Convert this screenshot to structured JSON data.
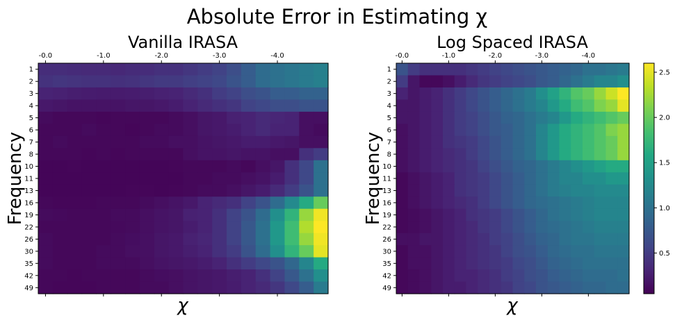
{
  "figure": {
    "title": "Absolute Error in Estimating χ"
  },
  "colormap": "viridis",
  "chart_data": [
    {
      "type": "heatmap",
      "title": "Vanilla IRASA",
      "xlabel": "χ",
      "ylabel": "Frequency",
      "x_tick_labels": [
        "-0.0",
        "-1.0",
        "-2.0",
        "-3.0",
        "-4.0"
      ],
      "y_tick_labels": [
        "1",
        "2",
        "3",
        "4",
        "5",
        "6",
        "7",
        "8",
        "10",
        "11",
        "13",
        "16",
        "19",
        "22",
        "26",
        "30",
        "35",
        "42",
        "49"
      ],
      "grid": false,
      "color_range": [
        0.05,
        2.6
      ],
      "values": [
        [
          0.38,
          0.38,
          0.36,
          0.35,
          0.35,
          0.34,
          0.36,
          0.37,
          0.4,
          0.4,
          0.45,
          0.5,
          0.55,
          0.65,
          0.8,
          0.95,
          1.0,
          1.05,
          1.1,
          1.15
        ],
        [
          0.42,
          0.45,
          0.43,
          0.42,
          0.42,
          0.4,
          0.42,
          0.45,
          0.48,
          0.48,
          0.52,
          0.55,
          0.6,
          0.7,
          0.8,
          0.95,
          1.0,
          1.05,
          1.1,
          1.15
        ],
        [
          0.3,
          0.28,
          0.26,
          0.25,
          0.24,
          0.24,
          0.25,
          0.26,
          0.28,
          0.3,
          0.35,
          0.4,
          0.5,
          0.55,
          0.65,
          0.7,
          0.8,
          0.8,
          0.85,
          0.85
        ],
        [
          0.22,
          0.2,
          0.18,
          0.18,
          0.18,
          0.18,
          0.2,
          0.2,
          0.22,
          0.25,
          0.3,
          0.35,
          0.4,
          0.45,
          0.55,
          0.6,
          0.65,
          0.65,
          0.7,
          0.7
        ],
        [
          0.12,
          0.1,
          0.1,
          0.1,
          0.09,
          0.1,
          0.1,
          0.1,
          0.1,
          0.12,
          0.15,
          0.2,
          0.22,
          0.28,
          0.3,
          0.35,
          0.32,
          0.3,
          0.15,
          0.15
        ],
        [
          0.1,
          0.1,
          0.1,
          0.12,
          0.1,
          0.1,
          0.09,
          0.1,
          0.12,
          0.12,
          0.15,
          0.2,
          0.22,
          0.25,
          0.3,
          0.35,
          0.3,
          0.3,
          0.15,
          0.12
        ],
        [
          0.1,
          0.12,
          0.1,
          0.1,
          0.1,
          0.1,
          0.1,
          0.12,
          0.12,
          0.15,
          0.15,
          0.18,
          0.2,
          0.22,
          0.25,
          0.25,
          0.22,
          0.2,
          0.15,
          0.15
        ],
        [
          0.1,
          0.1,
          0.1,
          0.09,
          0.1,
          0.09,
          0.1,
          0.1,
          0.1,
          0.1,
          0.15,
          0.18,
          0.18,
          0.2,
          0.18,
          0.18,
          0.15,
          0.15,
          0.4,
          0.5
        ],
        [
          0.08,
          0.08,
          0.09,
          0.08,
          0.08,
          0.08,
          0.08,
          0.08,
          0.08,
          0.09,
          0.1,
          0.1,
          0.1,
          0.12,
          0.1,
          0.15,
          0.2,
          0.4,
          0.6,
          1.0
        ],
        [
          0.08,
          0.08,
          0.08,
          0.08,
          0.08,
          0.08,
          0.08,
          0.08,
          0.08,
          0.08,
          0.1,
          0.1,
          0.12,
          0.12,
          0.15,
          0.18,
          0.25,
          0.4,
          0.6,
          1.0
        ],
        [
          0.08,
          0.08,
          0.08,
          0.08,
          0.08,
          0.08,
          0.09,
          0.09,
          0.08,
          0.09,
          0.1,
          0.12,
          0.12,
          0.15,
          0.2,
          0.25,
          0.35,
          0.5,
          0.7,
          1.0
        ],
        [
          0.1,
          0.09,
          0.09,
          0.09,
          0.1,
          0.1,
          0.1,
          0.12,
          0.15,
          0.18,
          0.22,
          0.3,
          0.35,
          0.4,
          0.55,
          0.7,
          0.95,
          1.25,
          1.6,
          2.0
        ],
        [
          0.12,
          0.11,
          0.1,
          0.1,
          0.1,
          0.12,
          0.12,
          0.15,
          0.18,
          0.2,
          0.28,
          0.3,
          0.4,
          0.55,
          0.7,
          0.95,
          1.3,
          1.7,
          2.2,
          2.55
        ],
        [
          0.1,
          0.1,
          0.1,
          0.1,
          0.1,
          0.11,
          0.12,
          0.15,
          0.18,
          0.2,
          0.25,
          0.3,
          0.4,
          0.55,
          0.75,
          1.0,
          1.4,
          1.8,
          2.3,
          2.6
        ],
        [
          0.12,
          0.1,
          0.1,
          0.1,
          0.1,
          0.12,
          0.14,
          0.16,
          0.2,
          0.22,
          0.28,
          0.32,
          0.4,
          0.55,
          0.75,
          1.0,
          1.4,
          1.8,
          2.2,
          2.55
        ],
        [
          0.12,
          0.1,
          0.1,
          0.1,
          0.12,
          0.12,
          0.15,
          0.16,
          0.2,
          0.22,
          0.26,
          0.3,
          0.4,
          0.5,
          0.7,
          0.95,
          1.3,
          1.7,
          2.0,
          2.5
        ],
        [
          0.12,
          0.1,
          0.1,
          0.1,
          0.12,
          0.12,
          0.12,
          0.15,
          0.18,
          0.2,
          0.22,
          0.25,
          0.3,
          0.4,
          0.5,
          0.6,
          0.7,
          0.9,
          1.2,
          1.6
        ],
        [
          0.1,
          0.1,
          0.09,
          0.1,
          0.1,
          0.1,
          0.1,
          0.12,
          0.14,
          0.15,
          0.18,
          0.2,
          0.22,
          0.26,
          0.3,
          0.4,
          0.55,
          0.75,
          1.0,
          1.3
        ],
        [
          0.1,
          0.09,
          0.09,
          0.09,
          0.1,
          0.1,
          0.1,
          0.12,
          0.12,
          0.15,
          0.18,
          0.2,
          0.22,
          0.25,
          0.3,
          0.35,
          0.45,
          0.6,
          0.8,
          1.1
        ]
      ]
    },
    {
      "type": "heatmap",
      "title": "Log Spaced IRASA",
      "xlabel": "χ",
      "ylabel": "Frequency",
      "x_tick_labels": [
        "-0.0",
        "-1.0",
        "-2.0",
        "-3.0",
        "-4.0"
      ],
      "y_tick_labels": [
        "1",
        "2",
        "3",
        "4",
        "5",
        "6",
        "7",
        "8",
        "10",
        "11",
        "13",
        "16",
        "19",
        "22",
        "26",
        "30",
        "35",
        "42",
        "49"
      ],
      "grid": false,
      "color_range": [
        0.05,
        2.6
      ],
      "colorbar_ticks": [
        0.5,
        1.0,
        1.5,
        2.0,
        2.5
      ],
      "values": [
        [
          0.7,
          0.5,
          0.4,
          0.4,
          0.4,
          0.4,
          0.45,
          0.5,
          0.55,
          0.6,
          0.65,
          0.7,
          0.75,
          0.8,
          0.85,
          0.9,
          1.0,
          1.0,
          1.05,
          1.1
        ],
        [
          0.5,
          0.2,
          0.1,
          0.1,
          0.15,
          0.25,
          0.35,
          0.45,
          0.5,
          0.55,
          0.6,
          0.65,
          0.75,
          0.8,
          0.9,
          1.0,
          1.1,
          1.2,
          1.2,
          1.3
        ],
        [
          0.3,
          0.2,
          0.25,
          0.3,
          0.4,
          0.5,
          0.6,
          0.7,
          0.8,
          0.9,
          1.0,
          1.1,
          1.3,
          1.5,
          1.7,
          1.9,
          2.0,
          2.2,
          2.4,
          2.6
        ],
        [
          0.2,
          0.2,
          0.25,
          0.3,
          0.4,
          0.5,
          0.6,
          0.7,
          0.8,
          0.9,
          1.0,
          1.1,
          1.2,
          1.4,
          1.6,
          1.8,
          1.9,
          2.1,
          2.2,
          2.5
        ],
        [
          0.2,
          0.2,
          0.25,
          0.3,
          0.4,
          0.5,
          0.55,
          0.65,
          0.75,
          0.85,
          0.9,
          1.0,
          1.1,
          1.2,
          1.4,
          1.6,
          1.7,
          1.8,
          1.9,
          2.0
        ],
        [
          0.15,
          0.2,
          0.25,
          0.3,
          0.4,
          0.5,
          0.55,
          0.65,
          0.75,
          0.8,
          0.9,
          1.0,
          1.2,
          1.4,
          1.6,
          1.7,
          1.8,
          1.9,
          2.1,
          2.2
        ],
        [
          0.15,
          0.2,
          0.25,
          0.3,
          0.4,
          0.45,
          0.5,
          0.6,
          0.7,
          0.8,
          0.9,
          1.0,
          1.2,
          1.4,
          1.6,
          1.7,
          1.8,
          1.9,
          2.0,
          2.2
        ],
        [
          0.15,
          0.2,
          0.25,
          0.3,
          0.35,
          0.4,
          0.5,
          0.6,
          0.7,
          0.8,
          0.9,
          1.0,
          1.2,
          1.4,
          1.6,
          1.7,
          1.8,
          1.9,
          2.0,
          2.2
        ],
        [
          0.15,
          0.2,
          0.25,
          0.3,
          0.35,
          0.4,
          0.45,
          0.55,
          0.65,
          0.75,
          0.85,
          0.9,
          1.0,
          1.1,
          1.2,
          1.3,
          1.4,
          1.5,
          1.6,
          1.6
        ],
        [
          0.1,
          0.15,
          0.2,
          0.25,
          0.3,
          0.4,
          0.45,
          0.5,
          0.6,
          0.7,
          0.8,
          0.9,
          1.0,
          1.1,
          1.2,
          1.2,
          1.3,
          1.3,
          1.4,
          1.4
        ],
        [
          0.1,
          0.15,
          0.2,
          0.25,
          0.3,
          0.4,
          0.45,
          0.5,
          0.6,
          0.7,
          0.8,
          0.9,
          1.0,
          1.1,
          1.15,
          1.2,
          1.2,
          1.25,
          1.25,
          1.25
        ],
        [
          0.1,
          0.15,
          0.2,
          0.25,
          0.3,
          0.35,
          0.4,
          0.5,
          0.6,
          0.7,
          0.8,
          0.9,
          0.95,
          1.0,
          1.05,
          1.1,
          1.15,
          1.2,
          1.2,
          1.2
        ],
        [
          0.1,
          0.12,
          0.15,
          0.2,
          0.25,
          0.3,
          0.4,
          0.45,
          0.5,
          0.6,
          0.7,
          0.8,
          0.9,
          1.0,
          1.05,
          1.1,
          1.15,
          1.2,
          1.2,
          1.2
        ],
        [
          0.1,
          0.12,
          0.15,
          0.2,
          0.25,
          0.3,
          0.35,
          0.45,
          0.5,
          0.6,
          0.7,
          0.8,
          0.9,
          0.95,
          1.0,
          1.05,
          1.1,
          1.15,
          1.15,
          1.15
        ],
        [
          0.15,
          0.15,
          0.2,
          0.2,
          0.25,
          0.3,
          0.35,
          0.4,
          0.5,
          0.55,
          0.65,
          0.75,
          0.85,
          0.9,
          1.0,
          1.05,
          1.05,
          1.1,
          1.1,
          1.1
        ],
        [
          0.1,
          0.15,
          0.15,
          0.2,
          0.25,
          0.3,
          0.35,
          0.4,
          0.45,
          0.55,
          0.65,
          0.7,
          0.8,
          0.9,
          0.95,
          1.0,
          1.0,
          1.05,
          1.05,
          1.05
        ],
        [
          0.1,
          0.15,
          0.15,
          0.2,
          0.25,
          0.3,
          0.35,
          0.4,
          0.45,
          0.5,
          0.6,
          0.65,
          0.75,
          0.85,
          0.9,
          0.95,
          1.0,
          1.0,
          1.0,
          1.0
        ],
        [
          0.1,
          0.12,
          0.15,
          0.2,
          0.25,
          0.3,
          0.3,
          0.35,
          0.4,
          0.5,
          0.55,
          0.65,
          0.7,
          0.8,
          0.85,
          0.9,
          0.95,
          0.95,
          0.95,
          1.0
        ],
        [
          0.1,
          0.12,
          0.15,
          0.2,
          0.25,
          0.25,
          0.3,
          0.35,
          0.4,
          0.45,
          0.55,
          0.6,
          0.7,
          0.75,
          0.8,
          0.85,
          0.9,
          0.9,
          0.95,
          0.95
        ]
      ]
    }
  ]
}
